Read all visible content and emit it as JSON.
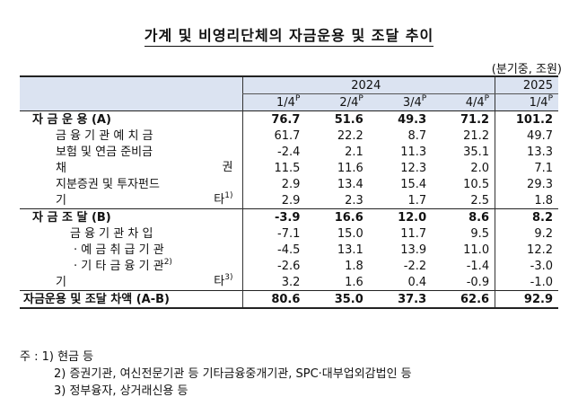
{
  "title": "가계 및 비영리단체의 자금운용 및 조달 추이",
  "unit": "(분기중, 조원)",
  "years": [
    "2024",
    "2025"
  ],
  "quarters": [
    "1/4",
    "2/4",
    "3/4",
    "4/4",
    "1/4"
  ],
  "prelim_mark": "P",
  "rows": [
    {
      "label": "자  금  운  용 (A)",
      "values": [
        "76.7",
        "51.6",
        "49.3",
        "71.2",
        "101.2"
      ]
    },
    {
      "label": "금 융 기 관  예 치 금",
      "values": [
        "61.7",
        "22.2",
        "8.7",
        "21.2",
        "49.7"
      ]
    },
    {
      "label": "보험 및 연금 준비금",
      "values": [
        "-2.4",
        "2.1",
        "11.3",
        "35.1",
        "13.3"
      ]
    },
    {
      "label": "채",
      "label_right": "권",
      "values": [
        "11.5",
        "11.6",
        "12.3",
        "2.0",
        "7.1"
      ]
    },
    {
      "label": "지분증권 및 투자펀드",
      "values": [
        "2.9",
        "13.4",
        "15.4",
        "10.5",
        "29.3"
      ]
    },
    {
      "label": "기",
      "label_right": "타",
      "note": "1)",
      "values": [
        "2.9",
        "2.3",
        "1.7",
        "2.5",
        "1.8"
      ]
    },
    {
      "label": "자  금  조  달 (B)",
      "values": [
        "-3.9",
        "16.6",
        "12.0",
        "8.6",
        "8.2"
      ]
    },
    {
      "label": "금 융 기 관  차 입",
      "values": [
        "-7.1",
        "15.0",
        "11.7",
        "9.5",
        "9.2"
      ]
    },
    {
      "label": "· 예 금 취 급 기 관",
      "values": [
        "-4.5",
        "13.1",
        "13.9",
        "11.0",
        "12.2"
      ]
    },
    {
      "label": "· 기 타 금 융 기 관",
      "note": "2)",
      "values": [
        "-2.6",
        "1.8",
        "-2.2",
        "-1.4",
        "-3.0"
      ]
    },
    {
      "label": "기",
      "label_right": "타",
      "note": "3)",
      "values": [
        "3.2",
        "1.6",
        "0.4",
        "-0.9",
        "-1.0"
      ]
    },
    {
      "label": "자금운용 및 조달 차액 (A-B)",
      "values": [
        "80.6",
        "35.0",
        "37.3",
        "62.6",
        "92.9"
      ]
    }
  ],
  "notes": [
    "주 : 1) 현금 등",
    "2) 증권기관, 여신전문기관 등 기타금융중개기관, SPC·대부업외감법인 등",
    "3) 정부융자, 상거래신용 등"
  ]
}
